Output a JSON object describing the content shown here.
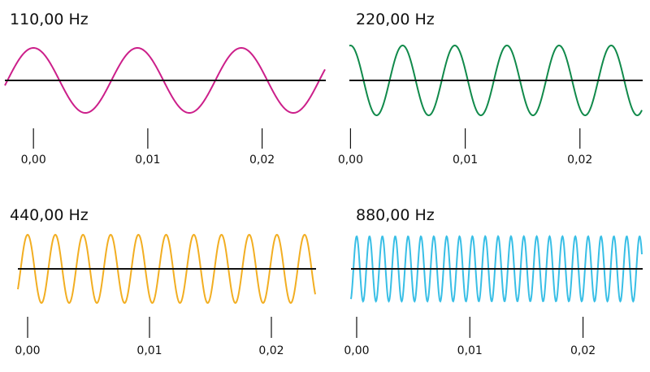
{
  "chart_data": [
    {
      "type": "line",
      "title": "110,00 Hz",
      "frequency_hz": 110,
      "color": "#cc1f8a",
      "xlim": [
        -0.0025,
        0.0255
      ],
      "ylim": [
        -1,
        1
      ],
      "xticks": [
        0.0,
        0.01,
        0.02
      ],
      "xtick_labels": [
        "0,00",
        "0,01",
        "0,02"
      ],
      "grid": false,
      "legend": "none"
    },
    {
      "type": "line",
      "title": "220,00 Hz",
      "frequency_hz": 220,
      "color": "#118a4b",
      "xlim": [
        -0.0001,
        0.0254
      ],
      "ylim": [
        -1,
        1
      ],
      "xticks": [
        0.0,
        0.01,
        0.02
      ],
      "xtick_labels": [
        "0,00",
        "0,01",
        "0,02"
      ],
      "grid": false,
      "legend": "none"
    },
    {
      "type": "line",
      "title": "440,00 Hz",
      "frequency_hz": 440,
      "color": "#f2ae22",
      "xlim": [
        -0.0008,
        0.0236
      ],
      "ylim": [
        -1,
        1
      ],
      "xticks": [
        0.0,
        0.01,
        0.02
      ],
      "xtick_labels": [
        "0,00",
        "0,01",
        "0,02"
      ],
      "grid": false,
      "legend": "none"
    },
    {
      "type": "line",
      "title": "880,00 Hz",
      "frequency_hz": 880,
      "color": "#39bfe6",
      "xlim": [
        -0.0005,
        0.0252
      ],
      "ylim": [
        -1,
        1
      ],
      "xticks": [
        0.0,
        0.01,
        0.02
      ],
      "xtick_labels": [
        "0,00",
        "0,01",
        "0,02"
      ],
      "grid": false,
      "legend": "none"
    }
  ]
}
